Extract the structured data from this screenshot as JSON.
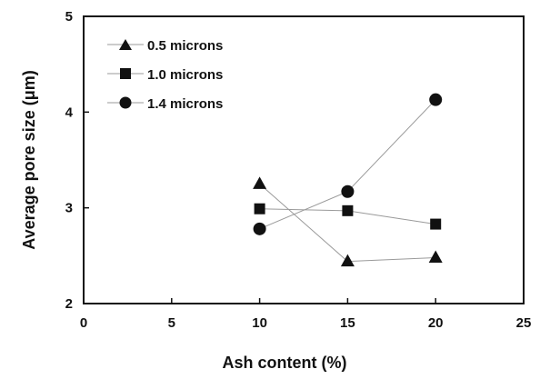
{
  "chart_data": {
    "type": "line",
    "xlabel": "Ash content (%)",
    "ylabel": "Average pore size (μm)",
    "xlim": [
      0,
      25
    ],
    "ylim": [
      2,
      5
    ],
    "xticks": [
      0,
      5,
      10,
      15,
      20,
      25
    ],
    "yticks": [
      2,
      3,
      4,
      5
    ],
    "grid": false,
    "legend_position": "top-left",
    "x": [
      10,
      15,
      20
    ],
    "series": [
      {
        "name": "0.5 microns",
        "marker": "triangle",
        "values": [
          3.25,
          2.44,
          2.48
        ]
      },
      {
        "name": "1.0 microns",
        "marker": "square",
        "values": [
          2.99,
          2.97,
          2.83
        ]
      },
      {
        "name": "1.4 microns",
        "marker": "circle",
        "values": [
          2.78,
          3.17,
          4.13
        ]
      }
    ],
    "colors": {
      "marker": "#111111",
      "line": "#9a9a9a"
    }
  }
}
